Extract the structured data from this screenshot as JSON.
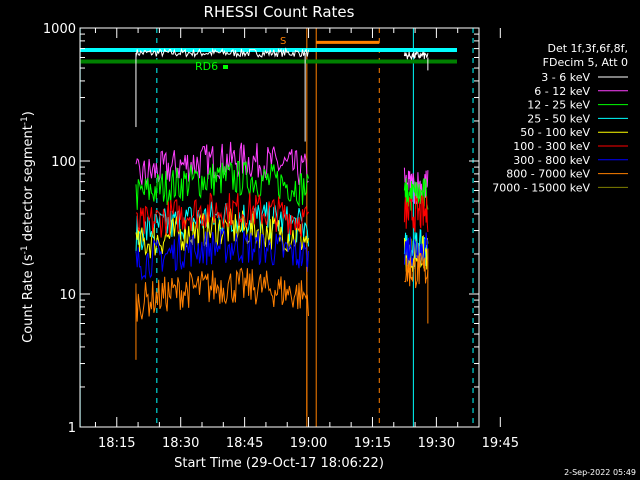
{
  "chart_data": {
    "type": "line",
    "title": "RHESSI Count Rates",
    "xlabel": "Start Time (29-Oct-17 18:06:22)",
    "ylabel_main": "Count Rate (s",
    "ylabel_sup1": "-1",
    "ylabel_mid": " detector segment",
    "ylabel_sup2": "-1",
    "ylabel_end": ")",
    "yscale": "log",
    "ylim": [
      1,
      1000
    ],
    "xlim_minutes": [
      6.37,
      100
    ],
    "x_tick_labels": [
      "18:15",
      "18:30",
      "18:45",
      "19:00",
      "19:15",
      "19:30",
      "19:45"
    ],
    "x_tick_minutes": [
      15,
      30,
      45,
      60,
      75,
      90,
      105
    ],
    "y_tick_labels": [
      "1",
      "10",
      "100",
      "1000"
    ],
    "y_tick_values": [
      1,
      10,
      100,
      1000
    ],
    "legend_header": [
      "Det 1f,3f,6f,8f,",
      "FDecim 5, Att 0"
    ],
    "series": [
      {
        "name": "3 - 6 keV",
        "color": "#ffffff"
      },
      {
        "name": "6 - 12 keV",
        "color": "#ff40ff"
      },
      {
        "name": "12 - 25 keV",
        "color": "#00ff00"
      },
      {
        "name": "25 - 50 keV",
        "color": "#00ffff"
      },
      {
        "name": "50 - 100 keV",
        "color": "#ffff00"
      },
      {
        "name": "100 - 300 keV",
        "color": "#ff0000"
      },
      {
        "name": "300 - 800 keV",
        "color": "#0000ff"
      },
      {
        "name": "800 - 7000 keV",
        "color": "#ff8000"
      },
      {
        "name": "7000 - 15000 keV",
        "color": "#808000"
      }
    ],
    "series_levels": {
      "seg1": {
        "x": [
          19.5,
          60
        ],
        "levels": [
          650,
          75,
          55,
          28,
          23,
          32,
          17,
          8.5
        ]
      },
      "seg2": {
        "x": [
          82.5,
          88
        ],
        "levels": [
          620,
          65,
          55,
          22,
          20,
          40,
          22,
          15
        ]
      }
    },
    "annotations": {
      "rd6": "RD6",
      "s_label": "S",
      "rd_bar_level": 560,
      "attenuator_level": 660
    }
  },
  "footer_date": "2-Sep-2022 05:49"
}
